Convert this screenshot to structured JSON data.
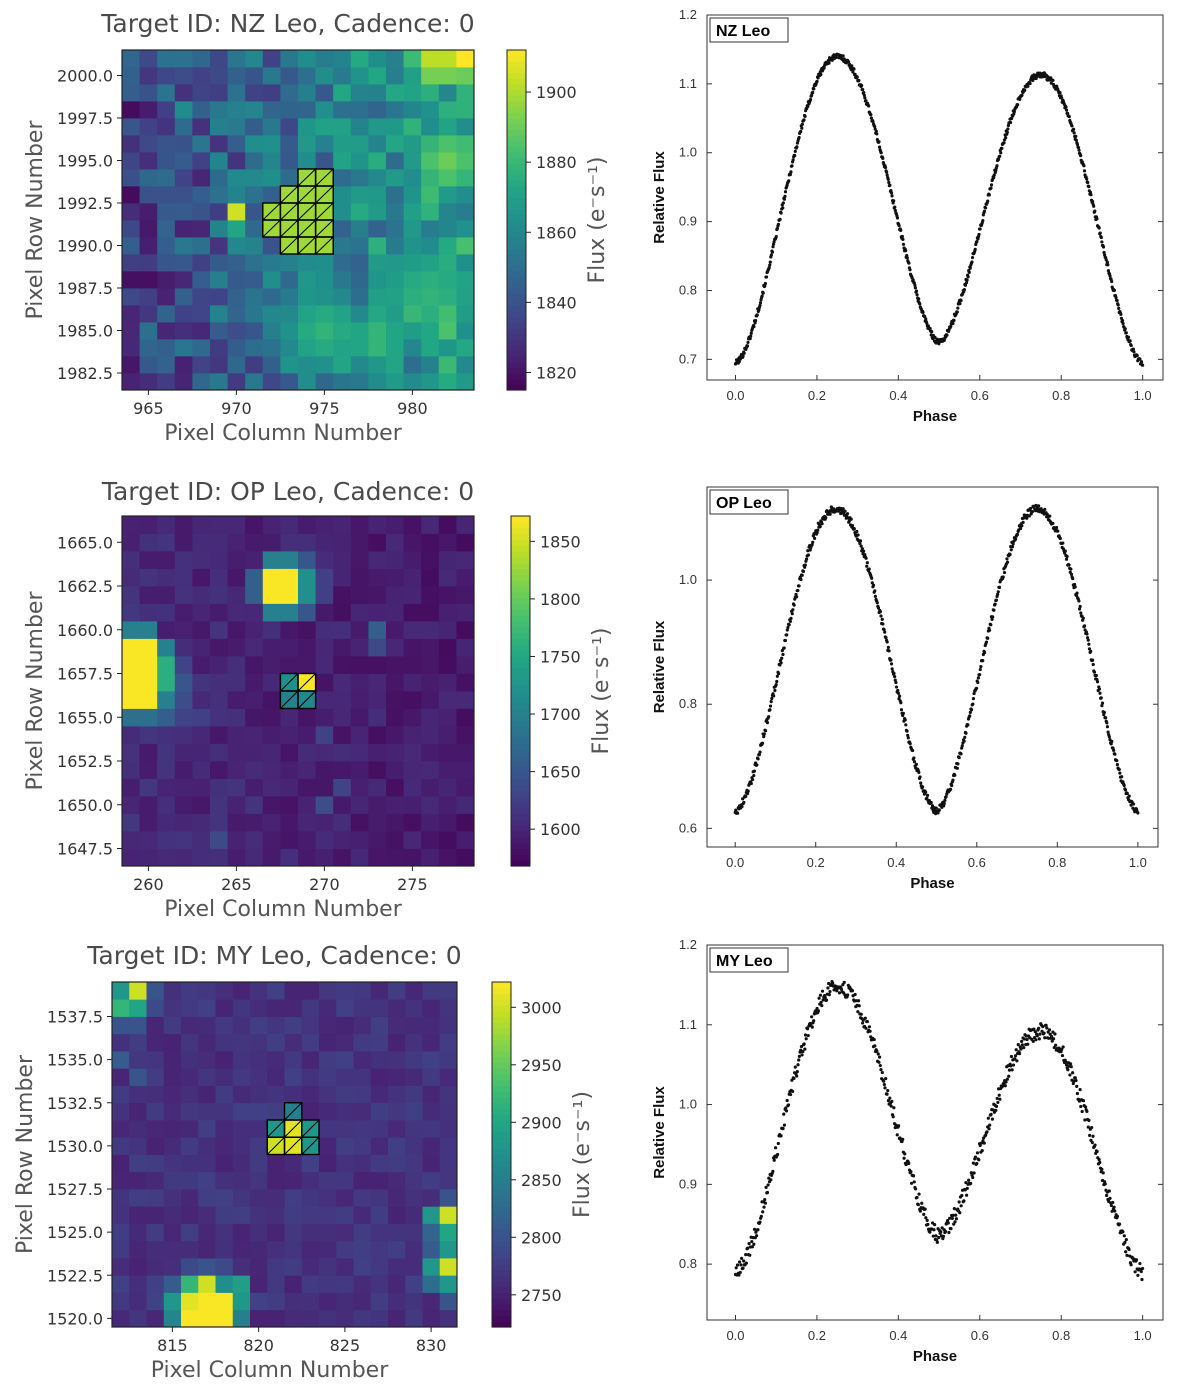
{
  "chart_data": [
    {
      "type": "heatmap",
      "title": "Target ID: NZ Leo, Cadence: 0",
      "xlabel": "Pixel Column Number",
      "ylabel": "Pixel Row Number",
      "colorbar_label": "Flux (e⁻s⁻¹)",
      "xlim": [
        963.5,
        983.5
      ],
      "ylim": [
        1981.5,
        2001.5
      ],
      "xticks": [
        965,
        970,
        975,
        980
      ],
      "xtick_labels": [
        "965",
        "970",
        "975",
        "980"
      ],
      "yticks": [
        1982.5,
        1985.0,
        1987.5,
        1990.0,
        1992.5,
        1995.0,
        1997.5,
        2000.0
      ],
      "ytick_labels": [
        "1982.5",
        "1985.0",
        "1987.5",
        "1990.0",
        "1992.5",
        "1995.0",
        "1997.5",
        "2000.0"
      ],
      "crange": [
        1815,
        1912
      ],
      "cticks": [
        1820,
        1840,
        1860,
        1880,
        1900
      ],
      "ctick_labels": [
        "1820",
        "1840",
        "1860",
        "1880",
        "1900"
      ],
      "seed": 11,
      "background": {
        "base": 1833,
        "gradient_x": 38,
        "noise": 16
      },
      "hotspots": [
        {
          "c": 981.5,
          "r": 2001,
          "v": 1905,
          "s": 1.3
        },
        {
          "c": 982,
          "r": 1995,
          "v": 1890,
          "s": 1.6
        },
        {
          "c": 975,
          "r": 1985,
          "v": 1878,
          "s": 1.8
        },
        {
          "c": 978,
          "r": 1984.5,
          "v": 1880,
          "s": 1.4
        },
        {
          "c": 981,
          "r": 1987,
          "v": 1878,
          "s": 2.5
        }
      ],
      "pixels": [
        {
          "c": 970,
          "r": 1992,
          "v": 1905
        },
        {
          "c": 970,
          "r": 1991,
          "v": 1872
        },
        {
          "c": 983,
          "r": 2001,
          "v": 1912
        },
        {
          "c": 983,
          "r": 2000,
          "v": 1890
        },
        {
          "c": 967,
          "r": 1998,
          "v": 1862
        }
      ],
      "aperture": [
        [
          974,
          1994
        ],
        [
          975,
          1994
        ],
        [
          973,
          1993
        ],
        [
          974,
          1993
        ],
        [
          975,
          1993
        ],
        [
          972,
          1992
        ],
        [
          973,
          1992
        ],
        [
          974,
          1992
        ],
        [
          975,
          1992
        ],
        [
          972,
          1991
        ],
        [
          973,
          1991
        ],
        [
          974,
          1991
        ],
        [
          975,
          1991
        ],
        [
          973,
          1990
        ],
        [
          974,
          1990
        ],
        [
          975,
          1990
        ]
      ],
      "aperture_value": 1898
    },
    {
      "type": "heatmap",
      "title": "Target ID: OP Leo, Cadence: 0",
      "xlabel": "Pixel Column Number",
      "ylabel": "Pixel Row Number",
      "colorbar_label": "Flux (e⁻s⁻¹)",
      "xlim": [
        258.5,
        278.5
      ],
      "ylim": [
        1646.5,
        1666.5
      ],
      "xticks": [
        260,
        265,
        270,
        275
      ],
      "xtick_labels": [
        "260",
        "265",
        "270",
        "275"
      ],
      "yticks": [
        1647.5,
        1650.0,
        1652.5,
        1655.0,
        1657.5,
        1660.0,
        1662.5,
        1665.0
      ],
      "ytick_labels": [
        "1647.5",
        "1650.0",
        "1652.5",
        "1655.0",
        "1657.5",
        "1660.0",
        "1662.5",
        "1665.0"
      ],
      "crange": [
        1568,
        1872
      ],
      "cticks": [
        1600,
        1650,
        1700,
        1750,
        1800,
        1850
      ],
      "ctick_labels": [
        "1600",
        "1650",
        "1700",
        "1750",
        "1800",
        "1850"
      ],
      "seed": 23,
      "background": {
        "base": 1605,
        "gradient_x": -15,
        "noise": 14
      },
      "hotspots": [],
      "pixels": [
        {
          "c": 259,
          "r": 1659,
          "v": 1870
        },
        {
          "c": 260,
          "r": 1659,
          "v": 1870
        },
        {
          "c": 259,
          "r": 1658,
          "v": 1870
        },
        {
          "c": 260,
          "r": 1658,
          "v": 1870
        },
        {
          "c": 259,
          "r": 1657,
          "v": 1870
        },
        {
          "c": 260,
          "r": 1657,
          "v": 1870
        },
        {
          "c": 259,
          "r": 1656,
          "v": 1870
        },
        {
          "c": 260,
          "r": 1656,
          "v": 1870
        },
        {
          "c": 261,
          "r": 1658,
          "v": 1760
        },
        {
          "c": 261,
          "r": 1657,
          "v": 1760
        },
        {
          "c": 261,
          "r": 1659,
          "v": 1700
        },
        {
          "c": 261,
          "r": 1656,
          "v": 1700
        },
        {
          "c": 259,
          "r": 1660,
          "v": 1700
        },
        {
          "c": 260,
          "r": 1660,
          "v": 1700
        },
        {
          "c": 259,
          "r": 1655,
          "v": 1680
        },
        {
          "c": 260,
          "r": 1655,
          "v": 1680
        },
        {
          "c": 261,
          "r": 1655,
          "v": 1660
        },
        {
          "c": 262,
          "r": 1657,
          "v": 1650
        },
        {
          "c": 262,
          "r": 1656,
          "v": 1640
        },
        {
          "c": 262,
          "r": 1655,
          "v": 1630
        },
        {
          "c": 263,
          "r": 1655,
          "v": 1625
        },
        {
          "c": 262,
          "r": 1658,
          "v": 1630
        },
        {
          "c": 267,
          "r": 1663,
          "v": 1870
        },
        {
          "c": 268,
          "r": 1663,
          "v": 1870
        },
        {
          "c": 267,
          "r": 1662,
          "v": 1870
        },
        {
          "c": 268,
          "r": 1662,
          "v": 1870
        },
        {
          "c": 269,
          "r": 1663,
          "v": 1720
        },
        {
          "c": 269,
          "r": 1662,
          "v": 1720
        },
        {
          "c": 267,
          "r": 1664,
          "v": 1700
        },
        {
          "c": 268,
          "r": 1664,
          "v": 1700
        },
        {
          "c": 267,
          "r": 1661,
          "v": 1700
        },
        {
          "c": 268,
          "r": 1661,
          "v": 1700
        },
        {
          "c": 266,
          "r": 1663,
          "v": 1660
        },
        {
          "c": 266,
          "r": 1662,
          "v": 1660
        },
        {
          "c": 269,
          "r": 1664,
          "v": 1650
        },
        {
          "c": 269,
          "r": 1661,
          "v": 1650
        },
        {
          "c": 270,
          "r": 1663,
          "v": 1625
        },
        {
          "c": 270,
          "r": 1662,
          "v": 1625
        },
        {
          "c": 273,
          "r": 1660,
          "v": 1660
        },
        {
          "c": 273,
          "r": 1659,
          "v": 1635
        },
        {
          "c": 270,
          "r": 1650,
          "v": 1640
        },
        {
          "c": 271,
          "r": 1651,
          "v": 1630
        },
        {
          "c": 264,
          "r": 1648,
          "v": 1635
        },
        {
          "c": 270,
          "r": 1654,
          "v": 1628
        }
      ],
      "aperture": [
        [
          268,
          1657
        ],
        [
          269,
          1657
        ],
        [
          268,
          1656
        ],
        [
          269,
          1656
        ]
      ],
      "aperture_values": [
        1720,
        1870,
        1700,
        1710
      ]
    },
    {
      "type": "heatmap",
      "title": "Target ID: MY Leo, Cadence: 0",
      "xlabel": "Pixel Column Number",
      "ylabel": "Pixel Row Number",
      "colorbar_label": "Flux (e⁻s⁻¹)",
      "xlim": [
        811.5,
        831.5
      ],
      "ylim": [
        1519.5,
        1539.5
      ],
      "xticks": [
        815,
        820,
        825,
        830
      ],
      "xtick_labels": [
        "815",
        "820",
        "825",
        "830"
      ],
      "yticks": [
        1520.0,
        1522.5,
        1525.0,
        1527.5,
        1530.0,
        1532.5,
        1535.0,
        1537.5
      ],
      "ytick_labels": [
        "1520.0",
        "1522.5",
        "1525.0",
        "1527.5",
        "1530.0",
        "1532.5",
        "1535.0",
        "1537.5"
      ],
      "crange": [
        2722,
        3022
      ],
      "cticks": [
        2750,
        2800,
        2850,
        2900,
        2950,
        3000
      ],
      "ctick_labels": [
        "2750",
        "2800",
        "2850",
        "2900",
        "2950",
        "3000"
      ],
      "seed": 37,
      "background": {
        "base": 2765,
        "gradient_x": 0,
        "noise": 14
      },
      "hotspots": [],
      "pixels": [
        {
          "c": 813,
          "r": 1539,
          "v": 3000
        },
        {
          "c": 812,
          "r": 1539,
          "v": 2880
        },
        {
          "c": 812,
          "r": 1538,
          "v": 2920
        },
        {
          "c": 813,
          "r": 1538,
          "v": 2900
        },
        {
          "c": 814,
          "r": 1539,
          "v": 2800
        },
        {
          "c": 814,
          "r": 1538,
          "v": 2790
        },
        {
          "c": 812,
          "r": 1537,
          "v": 2800
        },
        {
          "c": 813,
          "r": 1537,
          "v": 2800
        },
        {
          "c": 812,
          "r": 1535,
          "v": 2810
        },
        {
          "c": 813,
          "r": 1534,
          "v": 2800
        },
        {
          "c": 817,
          "r": 1521,
          "v": 3020
        },
        {
          "c": 818,
          "r": 1521,
          "v": 3020
        },
        {
          "c": 816,
          "r": 1520,
          "v": 3020
        },
        {
          "c": 817,
          "r": 1520,
          "v": 3020
        },
        {
          "c": 818,
          "r": 1520,
          "v": 3020
        },
        {
          "c": 816,
          "r": 1521,
          "v": 3010
        },
        {
          "c": 817,
          "r": 1522,
          "v": 3000
        },
        {
          "c": 816,
          "r": 1522,
          "v": 2920
        },
        {
          "c": 818,
          "r": 1522,
          "v": 2870
        },
        {
          "c": 819,
          "r": 1522,
          "v": 2890
        },
        {
          "c": 819,
          "r": 1521,
          "v": 2880
        },
        {
          "c": 819,
          "r": 1520,
          "v": 2850
        },
        {
          "c": 815,
          "r": 1521,
          "v": 2880
        },
        {
          "c": 815,
          "r": 1520,
          "v": 2860
        },
        {
          "c": 815,
          "r": 1522,
          "v": 2810
        },
        {
          "c": 817,
          "r": 1523,
          "v": 2800
        },
        {
          "c": 816,
          "r": 1523,
          "v": 2790
        },
        {
          "c": 818,
          "r": 1523,
          "v": 2790
        },
        {
          "c": 820,
          "r": 1521,
          "v": 2780
        },
        {
          "c": 814,
          "r": 1521,
          "v": 2780
        },
        {
          "c": 831,
          "r": 1526,
          "v": 3000
        },
        {
          "c": 831,
          "r": 1523,
          "v": 3000
        },
        {
          "c": 831,
          "r": 1525,
          "v": 2900
        },
        {
          "c": 831,
          "r": 1524,
          "v": 2880
        },
        {
          "c": 831,
          "r": 1522,
          "v": 2880
        },
        {
          "c": 830,
          "r": 1526,
          "v": 2880
        },
        {
          "c": 830,
          "r": 1523,
          "v": 2880
        },
        {
          "c": 830,
          "r": 1525,
          "v": 2820
        },
        {
          "c": 830,
          "r": 1522,
          "v": 2830
        },
        {
          "c": 830,
          "r": 1524,
          "v": 2810
        },
        {
          "c": 831,
          "r": 1527,
          "v": 2800
        },
        {
          "c": 831,
          "r": 1521,
          "v": 2800
        }
      ],
      "aperture": [
        [
          822,
          1532
        ],
        [
          821,
          1531
        ],
        [
          822,
          1531
        ],
        [
          823,
          1531
        ],
        [
          821,
          1530
        ],
        [
          822,
          1530
        ],
        [
          823,
          1530
        ]
      ],
      "aperture_values": [
        2850,
        2880,
        3010,
        2880,
        3000,
        3010,
        2880
      ]
    },
    {
      "type": "scatter",
      "label": "NZ Leo",
      "xlabel": "Phase",
      "ylabel": "Relative Flux",
      "xlim": [
        -0.07,
        1.05
      ],
      "ylim": [
        0.67,
        1.2
      ],
      "xticks": [
        0.0,
        0.2,
        0.4,
        0.6,
        0.8,
        1.0
      ],
      "xtick_labels": [
        "0.0",
        "0.2",
        "0.4",
        "0.6",
        "0.8",
        "1.0"
      ],
      "yticks": [
        0.7,
        0.8,
        0.9,
        1.0,
        1.1,
        1.2
      ],
      "ytick_labels": [
        "0.7",
        "0.8",
        "0.9",
        "1.0",
        "1.1",
        "1.2"
      ],
      "curve": {
        "min1": 0.695,
        "max1": 1.14,
        "min2": 0.725,
        "max2": 1.113,
        "scatter": 0.004,
        "n": 750,
        "seed": 101
      }
    },
    {
      "type": "scatter",
      "label": "OP Leo",
      "xlabel": "Phase",
      "ylabel": "Relative Flux",
      "xlim": [
        -0.07,
        1.05
      ],
      "ylim": [
        0.57,
        1.15
      ],
      "xticks": [
        0.0,
        0.2,
        0.4,
        0.6,
        0.8,
        1.0
      ],
      "xtick_labels": [
        "0.0",
        "0.2",
        "0.4",
        "0.6",
        "0.8",
        "1.0"
      ],
      "yticks": [
        0.6,
        0.8,
        1.0
      ],
      "ytick_labels": [
        "0.6",
        "0.8",
        "1.0"
      ],
      "curve": {
        "min1": 0.628,
        "max1": 1.115,
        "min2": 0.628,
        "max2": 1.115,
        "scatter": 0.006,
        "n": 650,
        "seed": 202
      }
    },
    {
      "type": "scatter",
      "label": "MY Leo",
      "xlabel": "Phase",
      "ylabel": "Relative Flux",
      "xlim": [
        -0.07,
        1.05
      ],
      "ylim": [
        0.73,
        1.2
      ],
      "xticks": [
        0.0,
        0.2,
        0.4,
        0.6,
        0.8,
        1.0
      ],
      "xtick_labels": [
        "0.0",
        "0.2",
        "0.4",
        "0.6",
        "0.8",
        "1.0"
      ],
      "yticks": [
        0.8,
        0.9,
        1.0,
        1.1,
        1.2
      ],
      "ytick_labels": [
        "0.8",
        "0.9",
        "1.0",
        "1.1",
        "1.2"
      ],
      "curve": {
        "min1": 0.79,
        "max1": 1.148,
        "min2": 0.836,
        "max2": 1.092,
        "scatter": 0.01,
        "n": 600,
        "seed": 303
      }
    }
  ]
}
